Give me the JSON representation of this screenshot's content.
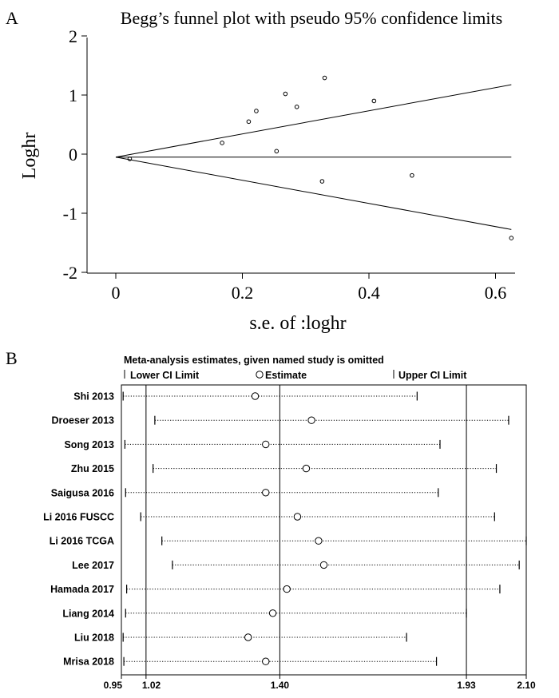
{
  "panel_a": {
    "letter": "A",
    "chart_data": {
      "type": "scatter",
      "title": "Begg’s funnel plot with pseudo 95% confidence limits",
      "xlabel": "s.e. of :loghr",
      "ylabel": "Loghr",
      "xlim": [
        0,
        0.63
      ],
      "ylim": [
        -2,
        2
      ],
      "x_ticks": [
        {
          "value": 0,
          "label": "0"
        },
        {
          "value": 0.2,
          "label": "0.2"
        },
        {
          "value": 0.4,
          "label": "0.4"
        },
        {
          "value": 0.6,
          "label": "0.6"
        }
      ],
      "y_ticks": [
        {
          "value": 2,
          "label": "2"
        },
        {
          "value": 1,
          "label": "1"
        },
        {
          "value": 0,
          "label": "0"
        },
        {
          "value": -1,
          "label": "-1"
        },
        {
          "value": -2,
          "label": "-2"
        }
      ],
      "pooled_estimate": -0.05,
      "funnel_max_se": 0.625,
      "points": [
        {
          "x": 0.022,
          "y": -0.08
        },
        {
          "x": 0.168,
          "y": 0.19
        },
        {
          "x": 0.21,
          "y": 0.55
        },
        {
          "x": 0.222,
          "y": 0.73
        },
        {
          "x": 0.254,
          "y": 0.05
        },
        {
          "x": 0.268,
          "y": 1.02
        },
        {
          "x": 0.286,
          "y": 0.8
        },
        {
          "x": 0.326,
          "y": -0.46
        },
        {
          "x": 0.33,
          "y": 1.29
        },
        {
          "x": 0.408,
          "y": 0.9
        },
        {
          "x": 0.468,
          "y": -0.36
        },
        {
          "x": 0.625,
          "y": -1.42
        }
      ],
      "grid": false
    }
  },
  "panel_b": {
    "letter": "B",
    "chart_data": {
      "type": "forest",
      "title": "Meta-analysis estimates, given named study is omitted",
      "legend": {
        "lower": "Lower CI Limit",
        "estimate": "Estimate",
        "upper": "Upper CI Limit"
      },
      "xlim": [
        0.95,
        2.1
      ],
      "x_ticks": [
        {
          "value": 0.95,
          "label": "0.95"
        },
        {
          "value": 1.02,
          "label": "1.02"
        },
        {
          "value": 1.4,
          "label": "1.40"
        },
        {
          "value": 1.93,
          "label": "1.93"
        },
        {
          "value": 2.1,
          "label": "2.10"
        }
      ],
      "reference_lines": [
        1.02,
        1.4,
        1.93
      ],
      "studies": [
        {
          "name": "Shi 2013",
          "lower": 0.955,
          "estimate": 1.33,
          "upper": 1.79
        },
        {
          "name": "Droeser 2013",
          "lower": 1.045,
          "estimate": 1.49,
          "upper": 2.05
        },
        {
          "name": "Song 2013",
          "lower": 0.96,
          "estimate": 1.36,
          "upper": 1.855
        },
        {
          "name": "Zhu 2015",
          "lower": 1.04,
          "estimate": 1.475,
          "upper": 2.015
        },
        {
          "name": "Saigusa 2016",
          "lower": 0.962,
          "estimate": 1.36,
          "upper": 1.85
        },
        {
          "name": "Li 2016 FUSCC",
          "lower": 1.005,
          "estimate": 1.45,
          "upper": 2.01
        },
        {
          "name": "Li 2016 TCGA",
          "lower": 1.065,
          "estimate": 1.51,
          "upper": 2.1
        },
        {
          "name": "Lee 2017",
          "lower": 1.095,
          "estimate": 1.525,
          "upper": 2.08
        },
        {
          "name": "Hamada 2017",
          "lower": 0.965,
          "estimate": 1.42,
          "upper": 2.025
        },
        {
          "name": "Liang 2014",
          "lower": 0.962,
          "estimate": 1.38,
          "upper": 1.93
        },
        {
          "name": "Liu 2018",
          "lower": 0.955,
          "estimate": 1.31,
          "upper": 1.76
        },
        {
          "name": "Mrisa 2018",
          "lower": 0.957,
          "estimate": 1.36,
          "upper": 1.845
        }
      ]
    }
  }
}
